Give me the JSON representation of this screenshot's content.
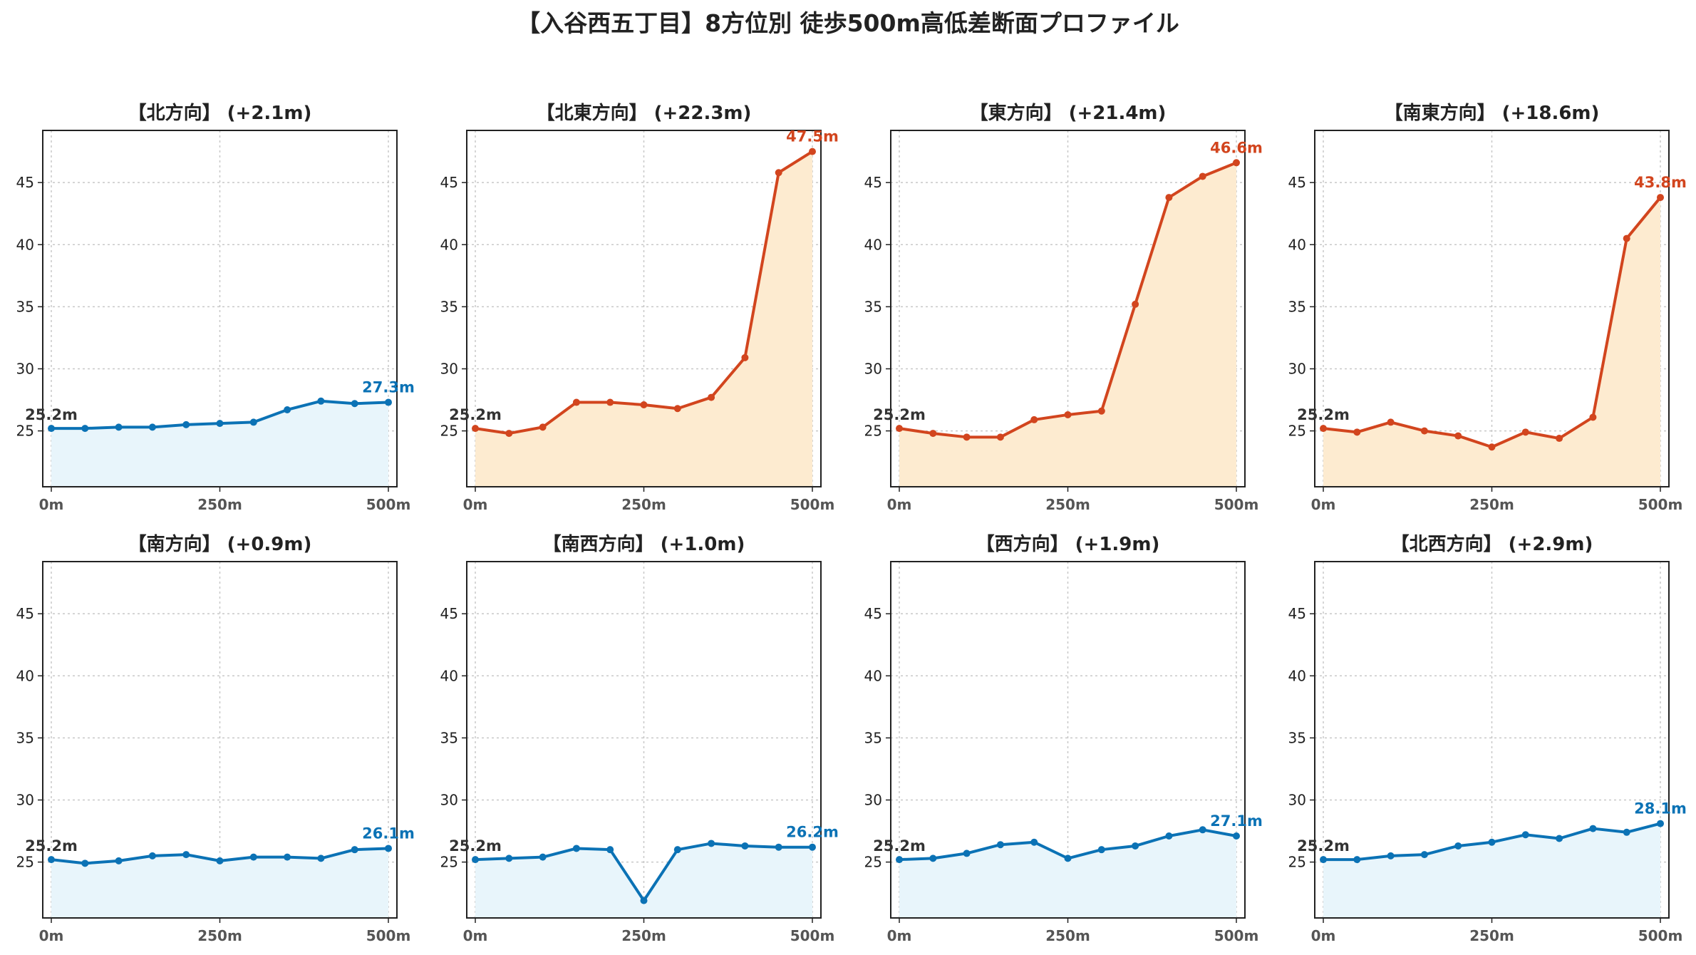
{
  "title": "【入谷西五丁目】8方位別 徒歩500m高低差断面プロファイル",
  "colors": {
    "flat_line": "#0b72b5",
    "flat_fill": "#e8f5fb",
    "steep_line": "#d2451e",
    "steep_fill": "#fdebd0",
    "start_label": "#333333",
    "grid": "#c8c8c8"
  },
  "chart_data": [
    {
      "type": "area",
      "title": "【北方向】 (+2.1m)",
      "style": "flat",
      "x": [
        0,
        50,
        100,
        150,
        200,
        250,
        300,
        350,
        400,
        450,
        500
      ],
      "xticks": [
        "0m",
        "250m",
        "500m"
      ],
      "yticks": [
        "25",
        "30",
        "35",
        "40",
        "45"
      ],
      "ylim": [
        20.5,
        49.2
      ],
      "values": [
        25.2,
        25.2,
        25.3,
        25.3,
        25.5,
        25.6,
        25.7,
        26.7,
        27.4,
        27.2,
        27.3
      ],
      "start_label": "25.2m",
      "end_label": "27.3m",
      "grid": true
    },
    {
      "type": "area",
      "title": "【北東方向】 (+22.3m)",
      "style": "steep",
      "x": [
        0,
        50,
        100,
        150,
        200,
        250,
        300,
        350,
        400,
        450,
        500
      ],
      "xticks": [
        "0m",
        "250m",
        "500m"
      ],
      "yticks": [
        "25",
        "30",
        "35",
        "40",
        "45"
      ],
      "ylim": [
        20.5,
        49.2
      ],
      "values": [
        25.2,
        24.8,
        25.3,
        27.3,
        27.3,
        27.1,
        26.8,
        27.7,
        30.9,
        45.8,
        47.5
      ],
      "start_label": "25.2m",
      "end_label": "47.5m",
      "grid": true
    },
    {
      "type": "area",
      "title": "【東方向】 (+21.4m)",
      "style": "steep",
      "x": [
        0,
        50,
        100,
        150,
        200,
        250,
        300,
        350,
        400,
        450,
        500
      ],
      "xticks": [
        "0m",
        "250m",
        "500m"
      ],
      "yticks": [
        "25",
        "30",
        "35",
        "40",
        "45"
      ],
      "ylim": [
        20.5,
        49.2
      ],
      "values": [
        25.2,
        24.8,
        24.5,
        24.5,
        25.9,
        26.3,
        26.6,
        35.2,
        43.8,
        45.5,
        46.6
      ],
      "start_label": "25.2m",
      "end_label": "46.6m",
      "grid": true
    },
    {
      "type": "area",
      "title": "【南東方向】 (+18.6m)",
      "style": "steep",
      "x": [
        0,
        50,
        100,
        150,
        200,
        250,
        300,
        350,
        400,
        450,
        500
      ],
      "xticks": [
        "0m",
        "250m",
        "500m"
      ],
      "yticks": [
        "25",
        "30",
        "35",
        "40",
        "45"
      ],
      "ylim": [
        20.5,
        49.2
      ],
      "values": [
        25.2,
        24.9,
        25.7,
        25.0,
        24.6,
        23.7,
        24.9,
        24.4,
        26.1,
        40.5,
        43.8
      ],
      "start_label": "25.2m",
      "end_label": "43.8m",
      "grid": true
    },
    {
      "type": "area",
      "title": "【南方向】 (+0.9m)",
      "style": "flat",
      "x": [
        0,
        50,
        100,
        150,
        200,
        250,
        300,
        350,
        400,
        450,
        500
      ],
      "xticks": [
        "0m",
        "250m",
        "500m"
      ],
      "yticks": [
        "25",
        "30",
        "35",
        "40",
        "45"
      ],
      "ylim": [
        20.5,
        49.2
      ],
      "values": [
        25.2,
        24.9,
        25.1,
        25.5,
        25.6,
        25.1,
        25.4,
        25.4,
        25.3,
        26.0,
        26.1
      ],
      "start_label": "25.2m",
      "end_label": "26.1m",
      "grid": true
    },
    {
      "type": "area",
      "title": "【南西方向】 (+1.0m)",
      "style": "flat",
      "x": [
        0,
        50,
        100,
        150,
        200,
        250,
        300,
        350,
        400,
        450,
        500
      ],
      "xticks": [
        "0m",
        "250m",
        "500m"
      ],
      "yticks": [
        "25",
        "30",
        "35",
        "40",
        "45"
      ],
      "ylim": [
        20.5,
        49.2
      ],
      "values": [
        25.2,
        25.3,
        25.4,
        26.1,
        26.0,
        21.9,
        26.0,
        26.5,
        26.3,
        26.2,
        26.2
      ],
      "start_label": "25.2m",
      "end_label": "26.2m",
      "grid": true
    },
    {
      "type": "area",
      "title": "【西方向】 (+1.9m)",
      "style": "flat",
      "x": [
        0,
        50,
        100,
        150,
        200,
        250,
        300,
        350,
        400,
        450,
        500
      ],
      "xticks": [
        "0m",
        "250m",
        "500m"
      ],
      "yticks": [
        "25",
        "30",
        "35",
        "40",
        "45"
      ],
      "ylim": [
        20.5,
        49.2
      ],
      "values": [
        25.2,
        25.3,
        25.7,
        26.4,
        26.6,
        25.3,
        26.0,
        26.3,
        27.1,
        27.6,
        27.1
      ],
      "start_label": "25.2m",
      "end_label": "27.1m",
      "grid": true
    },
    {
      "type": "area",
      "title": "【北西方向】 (+2.9m)",
      "style": "flat",
      "x": [
        0,
        50,
        100,
        150,
        200,
        250,
        300,
        350,
        400,
        450,
        500
      ],
      "xticks": [
        "0m",
        "250m",
        "500m"
      ],
      "yticks": [
        "25",
        "30",
        "35",
        "40",
        "45"
      ],
      "ylim": [
        20.5,
        49.2
      ],
      "values": [
        25.2,
        25.2,
        25.5,
        25.6,
        26.3,
        26.6,
        27.2,
        26.9,
        27.7,
        27.4,
        28.1
      ],
      "start_label": "25.2m",
      "end_label": "28.1m",
      "grid": true
    }
  ]
}
